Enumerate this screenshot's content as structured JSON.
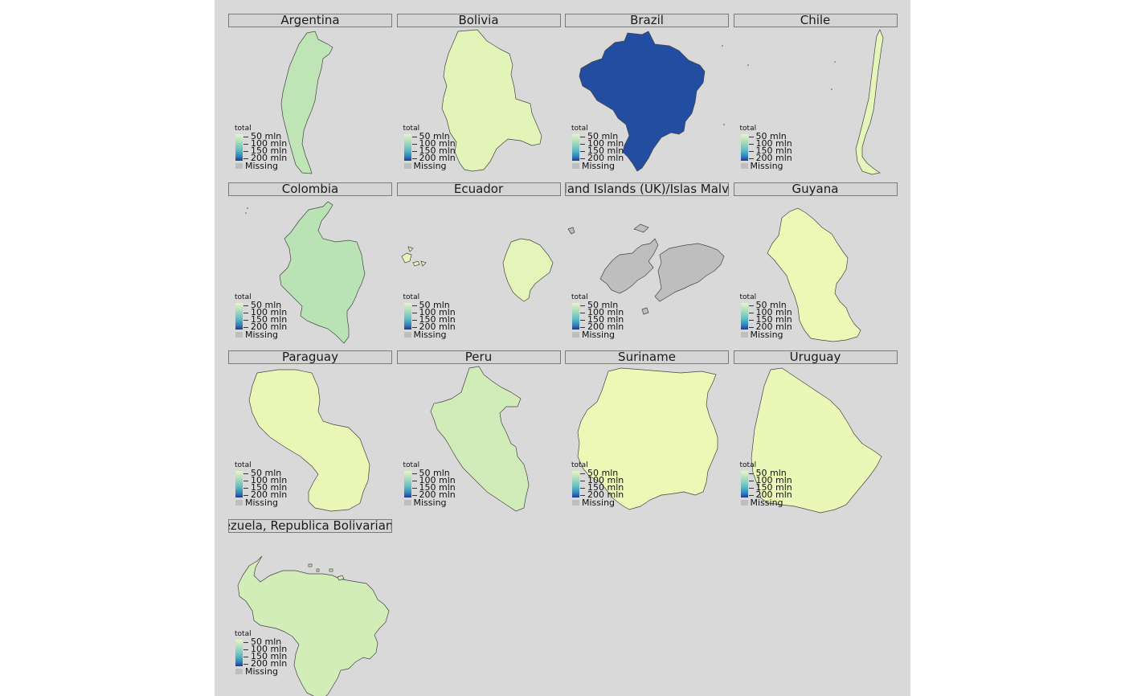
{
  "legend": {
    "title": "total",
    "ticks": [
      "50 mln",
      "100 mln",
      "150 mln",
      "200 mln"
    ],
    "missing_label": "Missing"
  },
  "colors": {
    "background": "#d9d9d9",
    "missing": "#bebebe",
    "palette_low": "#edf8b1",
    "palette_high": "#253494"
  },
  "panels": [
    {
      "name": "Argentina",
      "fill": "#bfe5b6",
      "total_mln": 44
    },
    {
      "name": "Bolivia",
      "fill": "#e3f4b8",
      "total_mln": 11
    },
    {
      "name": "Brazil",
      "fill": "#234da0",
      "total_mln": 209
    },
    {
      "name": "Chile",
      "fill": "#e6f5b9",
      "total_mln": 18
    },
    {
      "name": "Colombia",
      "fill": "#b9e3b5",
      "total_mln": 49
    },
    {
      "name": "Ecuador",
      "fill": "#e5f5b9",
      "total_mln": 17
    },
    {
      "name": "Falkland Islands (UK)/Islas Malvinas",
      "fill": "#bebebe",
      "total_mln": null
    },
    {
      "name": "Guyana",
      "fill": "#edf8b6",
      "total_mln": 1
    },
    {
      "name": "Paraguay",
      "fill": "#e9f6b5",
      "total_mln": 7
    },
    {
      "name": "Peru",
      "fill": "#d1ecb8",
      "total_mln": 32
    },
    {
      "name": "Suriname",
      "fill": "#edf8b6",
      "total_mln": 1
    },
    {
      "name": "Uruguay",
      "fill": "#eaf7b6",
      "total_mln": 3
    },
    {
      "name": "Venezuela, Republica Bolivariana de",
      "fill": "#d2edb8",
      "total_mln": 29
    }
  ]
}
